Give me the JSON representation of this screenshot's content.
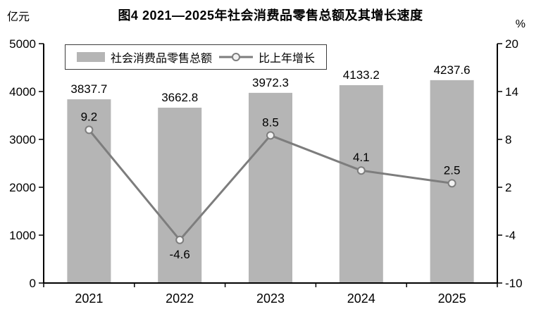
{
  "title": "图4  2021—2025年社会消费品零售总额及其增长速度",
  "left_unit": "亿元",
  "right_unit": "%",
  "legend": {
    "bar_label": "社会消费品零售总额",
    "line_label": "比上年增长"
  },
  "colors": {
    "bar": "#b5b5b5",
    "line": "#7d7d7d",
    "marker_fill": "#f2f2f2",
    "axis": "#000000",
    "text": "#000000"
  },
  "chart_data": {
    "type": "bar+line",
    "title": "图4  2021—2025年社会消费品零售总额及其增长速度",
    "categories": [
      "2021",
      "2022",
      "2023",
      "2024",
      "2025"
    ],
    "series": [
      {
        "name": "社会消费品零售总额",
        "type": "bar",
        "axis": "left",
        "values": [
          3837.7,
          3662.8,
          3972.3,
          4133.2,
          4237.6
        ]
      },
      {
        "name": "比上年增长",
        "type": "line",
        "axis": "right",
        "values": [
          9.2,
          -4.6,
          8.5,
          4.1,
          2.5
        ]
      }
    ],
    "y_left": {
      "label": "亿元",
      "min": 0,
      "max": 5000,
      "ticks": [
        0,
        1000,
        2000,
        3000,
        4000,
        5000
      ]
    },
    "y_right": {
      "label": "%",
      "min": -10,
      "max": 20,
      "ticks": [
        -10,
        -4,
        2,
        8,
        14,
        20
      ]
    },
    "grid": false,
    "legend_position": "top-left-inside"
  }
}
